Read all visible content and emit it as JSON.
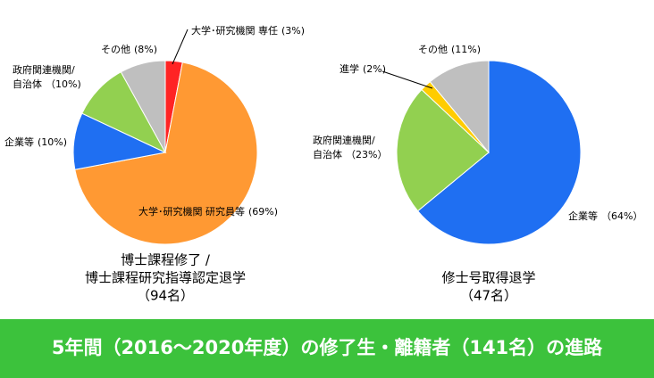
{
  "chart_data": [
    {
      "type": "pie",
      "title": [
        "博士課程修了 /",
        "博士課程研究指導認定退学"
      ],
      "subtitle": "（94名）",
      "categories": [
        "大学･研究機関 専任",
        "大学･研究機関 研究員等",
        "企業等",
        "政府関連機関/自治体",
        "その他"
      ],
      "values": [
        3,
        69,
        10,
        10,
        8
      ],
      "value_labels": [
        "(3%)",
        "(69%)",
        "(10%)",
        "（10%)",
        "(8%)"
      ],
      "colors": [
        "#ff2424",
        "#ff9933",
        "#1f6ff2",
        "#92d050",
        "#bfbfbf"
      ]
    },
    {
      "type": "pie",
      "title": [
        "修士号取得退学"
      ],
      "subtitle": "（47名）",
      "categories": [
        "企業等",
        "政府関連機関/自治体",
        "進学",
        "その他"
      ],
      "values": [
        64,
        23,
        2,
        11
      ],
      "value_labels": [
        "（64%）",
        "（23%）",
        "(2%)",
        "(11%)"
      ],
      "colors": [
        "#1f6ff2",
        "#92d050",
        "#ffcc00",
        "#bfbfbf"
      ]
    }
  ],
  "banner": "5年間（2016～2020年度）の修了生・離籍者（141名）の進路"
}
